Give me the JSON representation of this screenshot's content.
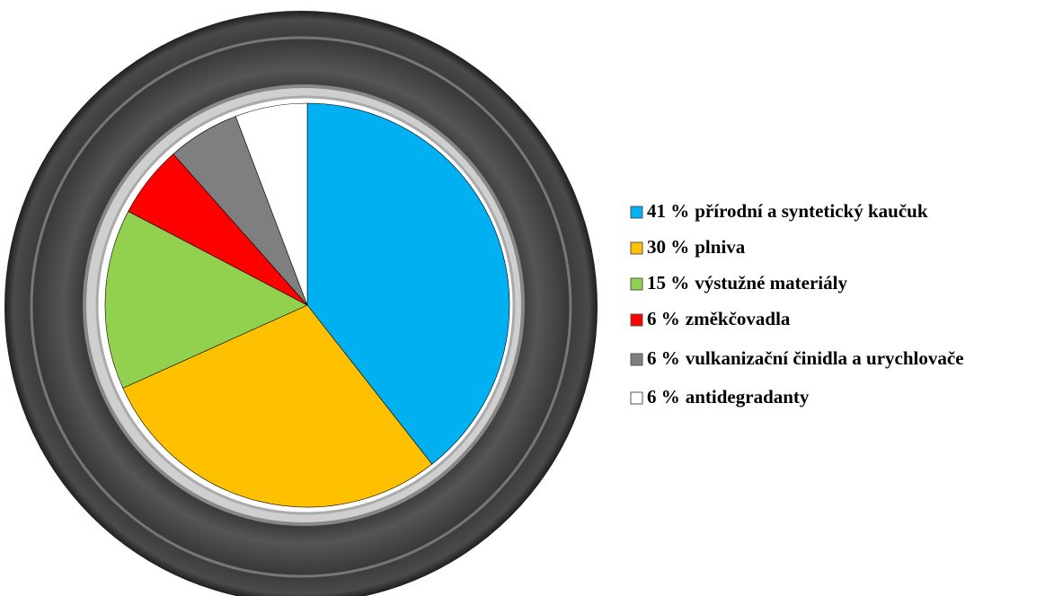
{
  "chart_data": {
    "type": "pie",
    "categories": [
      "přírodní a syntetický kaučuk",
      "plniva",
      "výstužné materiály",
      "změkčovadla",
      "vulkanizační činidla a urychlovače",
      "antidegradanty"
    ],
    "values": [
      41,
      30,
      15,
      6,
      6,
      6
    ],
    "value_labels": [
      "41 %",
      "30 %",
      "15 %",
      "6 %",
      "6 %",
      "6 %"
    ],
    "colors": [
      "#00b0f0",
      "#ffc000",
      "#92d050",
      "#ff0000",
      "#7f7f7f",
      "#ffffff"
    ],
    "legend": "right"
  }
}
